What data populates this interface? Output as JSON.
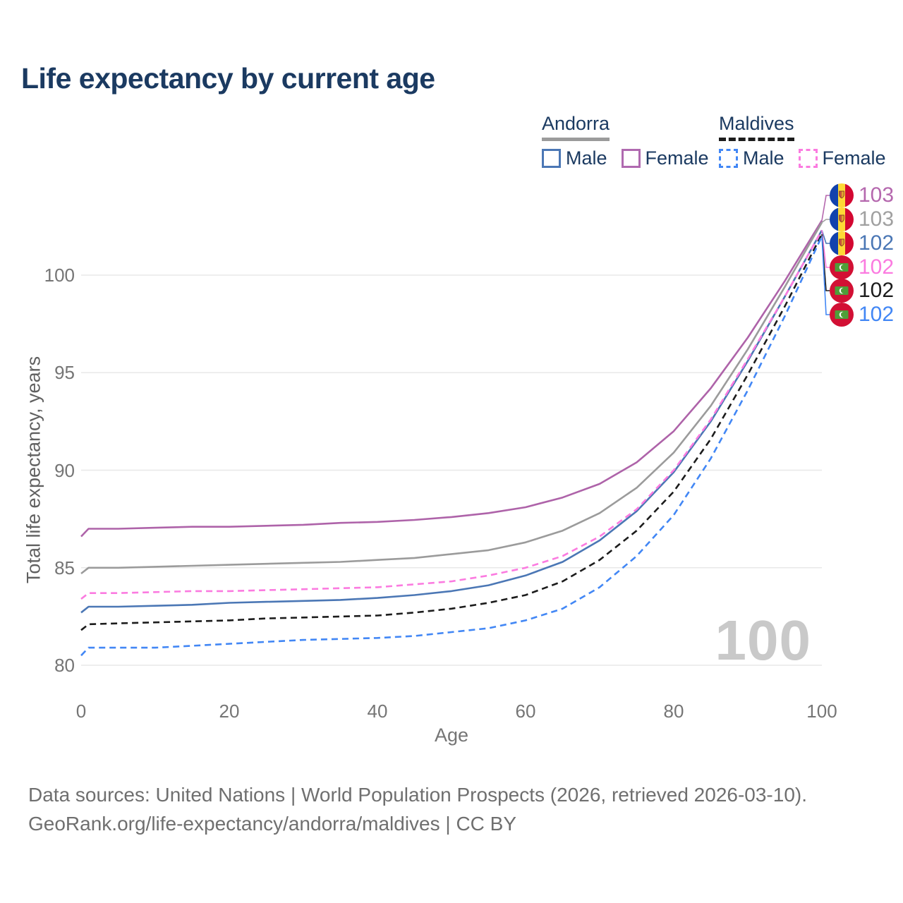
{
  "title": "Life expectancy by current age",
  "legend": {
    "groups": [
      {
        "label": "Andorra",
        "rule_color": "#9b9b9b",
        "rule_style": "solid",
        "items": [
          {
            "label": "Male",
            "color": "#4b77b5",
            "style": "solid"
          },
          {
            "label": "Female",
            "color": "#b06ab0",
            "style": "solid"
          }
        ]
      },
      {
        "label": "Maldives",
        "rule_color": "#1c1c1c",
        "rule_style": "dashed",
        "items": [
          {
            "label": "Male",
            "color": "#4287f5",
            "style": "dashed"
          },
          {
            "label": "Female",
            "color": "#fb7be0",
            "style": "dashed"
          }
        ]
      }
    ]
  },
  "chart_data": {
    "type": "line",
    "title": "Life expectancy by current age",
    "xlabel": "Age",
    "ylabel": "Total life expectancy, years",
    "xlim": [
      0,
      100
    ],
    "ylim": [
      79,
      104
    ],
    "xticks": [
      0,
      20,
      40,
      60,
      80,
      100
    ],
    "yticks": [
      80,
      85,
      90,
      95,
      100
    ],
    "grid": "horizontal",
    "legend_position": "top-right",
    "watermark": "100",
    "x": [
      0,
      1,
      5,
      10,
      15,
      20,
      25,
      30,
      35,
      40,
      45,
      50,
      55,
      60,
      65,
      70,
      75,
      80,
      85,
      90,
      95,
      100
    ],
    "series": [
      {
        "name": "Andorra Female",
        "country": "Andorra",
        "sex": "Female",
        "color": "#ae63a9",
        "dash": false,
        "values": [
          86.6,
          87.0,
          87.0,
          87.05,
          87.1,
          87.1,
          87.15,
          87.2,
          87.3,
          87.35,
          87.45,
          87.6,
          87.8,
          88.1,
          88.6,
          89.3,
          90.4,
          92.0,
          94.2,
          96.8,
          99.7,
          102.8
        ]
      },
      {
        "name": "Andorra",
        "country": "Andorra",
        "sex": "Both",
        "color": "#9b9b9b",
        "dash": false,
        "values": [
          84.7,
          85.0,
          85.0,
          85.05,
          85.1,
          85.15,
          85.2,
          85.25,
          85.3,
          85.4,
          85.5,
          85.7,
          85.9,
          86.3,
          86.9,
          87.8,
          89.1,
          90.9,
          93.3,
          96.2,
          99.4,
          102.7
        ]
      },
      {
        "name": "Andorra Male",
        "country": "Andorra",
        "sex": "Male",
        "color": "#4b77b5",
        "dash": false,
        "values": [
          82.7,
          83.0,
          83.0,
          83.05,
          83.1,
          83.2,
          83.25,
          83.3,
          83.35,
          83.45,
          83.6,
          83.8,
          84.1,
          84.6,
          85.3,
          86.4,
          87.9,
          89.9,
          92.5,
          95.6,
          98.9,
          102.3
        ]
      },
      {
        "name": "Maldives Female",
        "country": "Maldives",
        "sex": "Female",
        "color": "#fb7be0",
        "dash": true,
        "values": [
          83.4,
          83.7,
          83.7,
          83.75,
          83.8,
          83.8,
          83.85,
          83.9,
          83.95,
          84.0,
          84.15,
          84.3,
          84.6,
          85.0,
          85.6,
          86.6,
          88.0,
          90.0,
          92.6,
          95.7,
          98.9,
          102.3
        ]
      },
      {
        "name": "Maldives",
        "country": "Maldives",
        "sex": "Both",
        "color": "#1c1c1c",
        "dash": true,
        "values": [
          81.8,
          82.1,
          82.15,
          82.2,
          82.25,
          82.3,
          82.4,
          82.45,
          82.5,
          82.55,
          82.7,
          82.9,
          83.2,
          83.6,
          84.3,
          85.4,
          86.9,
          88.9,
          91.6,
          94.9,
          98.4,
          102.1
        ]
      },
      {
        "name": "Maldives Male",
        "country": "Maldives",
        "sex": "Male",
        "color": "#4287f5",
        "dash": true,
        "values": [
          80.5,
          80.9,
          80.9,
          80.9,
          81.0,
          81.1,
          81.2,
          81.3,
          81.35,
          81.4,
          81.5,
          81.7,
          81.9,
          82.3,
          82.9,
          84.0,
          85.6,
          87.7,
          90.6,
          94.1,
          97.9,
          102.0
        ]
      }
    ],
    "end_labels": [
      {
        "value": "103",
        "color": "#b568ae",
        "flag": "andorra",
        "icon": "andorra-flag-icon"
      },
      {
        "value": "103",
        "color": "#a0a0a0",
        "flag": "andorra",
        "icon": "andorra-flag-icon"
      },
      {
        "value": "102",
        "color": "#4b77b5",
        "flag": "andorra",
        "icon": "andorra-flag-icon"
      },
      {
        "value": "102",
        "color": "#fb7be0",
        "flag": "maldives",
        "icon": "maldives-flag-icon"
      },
      {
        "value": "102",
        "color": "#1c1c1c",
        "flag": "maldives",
        "icon": "maldives-flag-icon"
      },
      {
        "value": "102",
        "color": "#4287f5",
        "flag": "maldives",
        "icon": "maldives-flag-icon"
      }
    ]
  },
  "footer": {
    "line1": "Data sources: United Nations | World Population Prospects (2026, retrieved 2026-03-10).",
    "line2": "GeoRank.org/life-expectancy/andorra/maldives | CC BY"
  }
}
